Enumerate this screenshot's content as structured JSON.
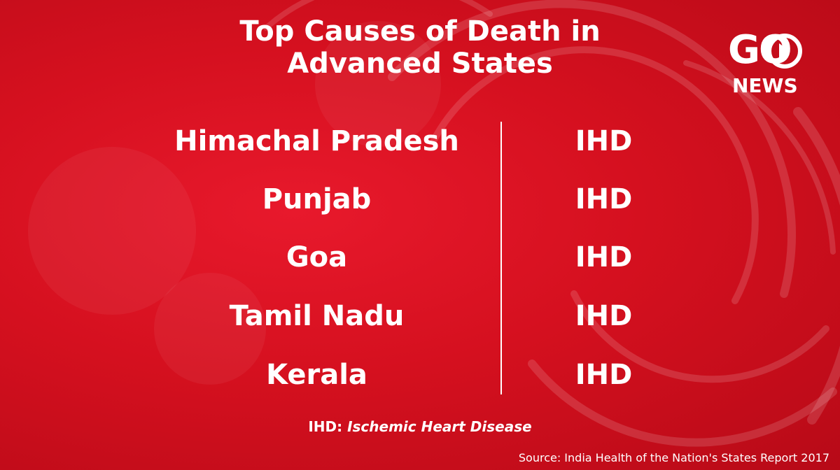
{
  "title": "Top Causes of Death in Advanced States",
  "logo": {
    "top_text": "GO",
    "bottom_text": "NEWS"
  },
  "rows": [
    {
      "state": "Himachal Pradesh",
      "cause": "IHD"
    },
    {
      "state": "Punjab",
      "cause": "IHD"
    },
    {
      "state": "Goa",
      "cause": "IHD"
    },
    {
      "state": "Tamil Nadu",
      "cause": "IHD"
    },
    {
      "state": "Kerala",
      "cause": "IHD"
    }
  ],
  "footnote": {
    "abbr": "IHD:",
    "meaning": "Ischemic Heart Disease"
  },
  "source": "Source: India Health of the Nation's States Report 2017",
  "colors": {
    "background": "#d5101f",
    "text": "#ffffff"
  }
}
